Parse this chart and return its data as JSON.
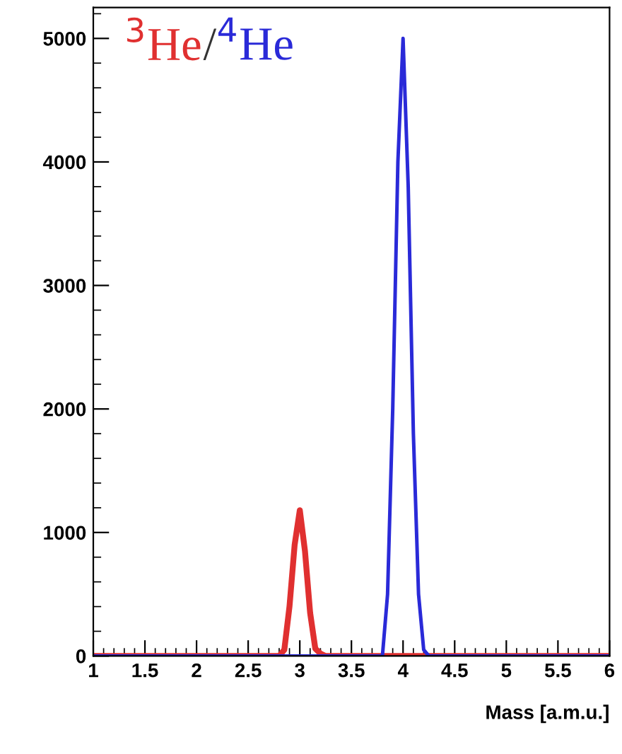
{
  "chart_data": {
    "type": "line",
    "xlabel": "Mass [a.m.u.]",
    "xlim": [
      1,
      6
    ],
    "ylim": [
      0,
      5250
    ],
    "xticks": [
      1,
      1.5,
      2,
      2.5,
      3,
      3.5,
      4,
      4.5,
      5,
      5.5,
      6
    ],
    "yticks": [
      0,
      1000,
      2000,
      3000,
      4000,
      5000
    ],
    "grid": false,
    "legend": "top left",
    "marker": "none",
    "line_style": "solid",
    "annotations": [
      "/"
    ],
    "series": [
      {
        "name": "$^{3}$He",
        "color": "#e03030",
        "x": [
          1,
          2.8,
          2.85,
          2.9,
          2.95,
          3.0,
          3.05,
          3.1,
          3.15,
          3.2,
          3.25,
          6
        ],
        "values": [
          0,
          0,
          50,
          400,
          900,
          1180,
          850,
          350,
          60,
          20,
          0,
          0
        ]
      },
      {
        "name": "$^{4}$He",
        "color": "#2a2ad8",
        "x": [
          1,
          3.8,
          3.85,
          3.9,
          3.95,
          4.0,
          4.05,
          4.1,
          4.15,
          4.2,
          4.25,
          6
        ],
        "values": [
          0,
          0,
          500,
          2000,
          4000,
          5000,
          3800,
          1800,
          500,
          50,
          0,
          0
        ]
      }
    ]
  }
}
